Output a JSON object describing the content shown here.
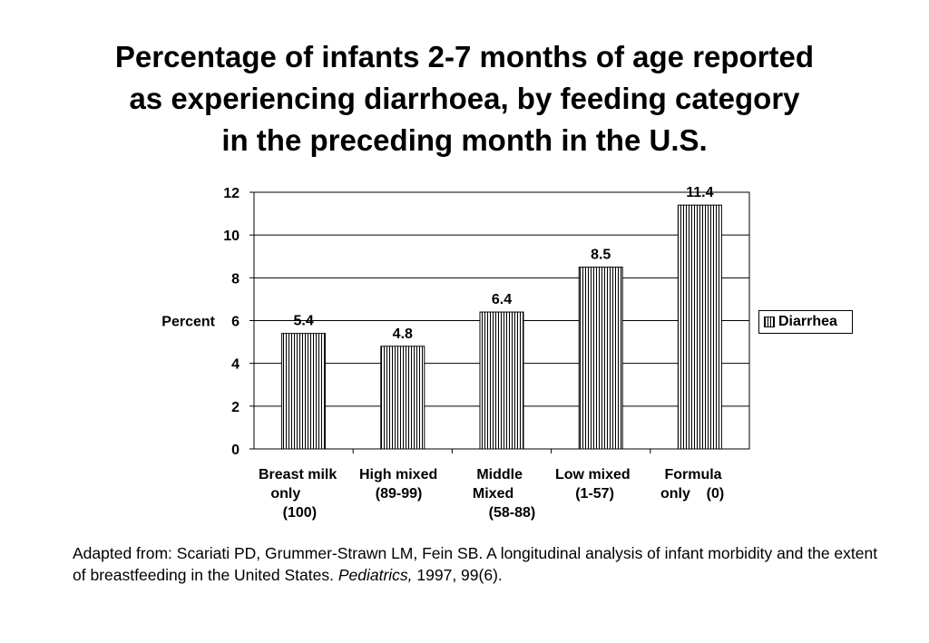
{
  "title_lines": [
    "Percentage of infants 2-7 months of age reported",
    "as experiencing diarrhoea, by feeding category",
    "in the preceding month in the U.S."
  ],
  "caption": {
    "part1": "Adapted from: Scariati PD, Grummer-Strawn LM, Fein SB. A longitudinal analysis of infant morbidity and the extent of breastfeeding in the United States. ",
    "journal": "Pediatrics,",
    "part2": " 1997, 99(6)."
  },
  "chart_data": {
    "type": "bar",
    "title": "Percentage of infants 2-7 months of age reported as experiencing diarrhoea, by feeding category in the preceding month in the U.S.",
    "ylabel": "Percent",
    "xlabel": "",
    "ylim": [
      0,
      12
    ],
    "yticks": [
      "0",
      "2",
      "4",
      "6",
      "8",
      "10",
      "12"
    ],
    "categories": [
      "Breast milk\n   only\n      (100)",
      "High mixed\n    (89-99)",
      "   Middle\n  Mixed\n      (58-88)",
      "Low mixed\n     (1-57)",
      " Formula\nonly    (0)"
    ],
    "series": [
      {
        "name": "Diarrhea",
        "values": [
          5.4,
          4.8,
          6.4,
          8.5,
          11.4
        ]
      }
    ],
    "data_labels": [
      "5.4",
      "4.8",
      "6.4",
      "8.5",
      "11.4"
    ],
    "legend": {
      "position": "right",
      "entries": [
        "Diarrhea"
      ]
    },
    "grid": true
  }
}
